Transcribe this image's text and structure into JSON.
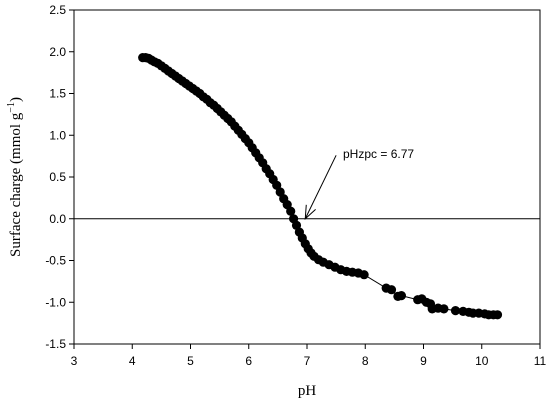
{
  "chart_data": {
    "type": "scatter",
    "xlabel": "pH",
    "ylabel_main": "Surface charge (mmol g",
    "ylabel_sup": "−1",
    "ylabel_close": ")",
    "xlim": [
      3,
      11
    ],
    "ylim": [
      -1.5,
      2.5
    ],
    "x_ticks": [
      3,
      4,
      5,
      6,
      7,
      8,
      9,
      10,
      11
    ],
    "y_ticks": [
      -1.5,
      -1.0,
      -0.5,
      0.0,
      0.5,
      1.0,
      1.5,
      2.0,
      2.5
    ],
    "x_tick_labels": [
      "3",
      "4",
      "5",
      "6",
      "7",
      "8",
      "9",
      "10",
      "11"
    ],
    "y_tick_labels": [
      "-1.5",
      "-1.0",
      "-0.5",
      "0.0",
      "0.5",
      "1.0",
      "1.5",
      "2.0",
      "2.5"
    ],
    "reference_line_y": 0,
    "grid": false,
    "marker_color": "#000000",
    "annotation": {
      "text": "pHzpc = 6.77",
      "arrow_tip": [
        6.97,
        0.0
      ],
      "arrow_tail": [
        7.5,
        0.76
      ]
    },
    "points": [
      [
        4.18,
        1.93
      ],
      [
        4.23,
        1.93
      ],
      [
        4.28,
        1.92
      ],
      [
        4.33,
        1.9
      ],
      [
        4.38,
        1.88
      ],
      [
        4.44,
        1.86
      ],
      [
        4.5,
        1.83
      ],
      [
        4.56,
        1.8
      ],
      [
        4.62,
        1.77
      ],
      [
        4.68,
        1.74
      ],
      [
        4.74,
        1.71
      ],
      [
        4.8,
        1.68
      ],
      [
        4.86,
        1.65
      ],
      [
        4.92,
        1.62
      ],
      [
        4.98,
        1.59
      ],
      [
        5.04,
        1.56
      ],
      [
        5.1,
        1.53
      ],
      [
        5.16,
        1.5
      ],
      [
        5.22,
        1.46
      ],
      [
        5.28,
        1.43
      ],
      [
        5.34,
        1.39
      ],
      [
        5.4,
        1.36
      ],
      [
        5.46,
        1.32
      ],
      [
        5.52,
        1.28
      ],
      [
        5.58,
        1.24
      ],
      [
        5.64,
        1.2
      ],
      [
        5.7,
        1.16
      ],
      [
        5.76,
        1.11
      ],
      [
        5.82,
        1.06
      ],
      [
        5.88,
        1.01
      ],
      [
        5.94,
        0.96
      ],
      [
        6.0,
        0.91
      ],
      [
        6.06,
        0.85
      ],
      [
        6.12,
        0.79
      ],
      [
        6.18,
        0.73
      ],
      [
        6.24,
        0.67
      ],
      [
        6.3,
        0.6
      ],
      [
        6.36,
        0.54
      ],
      [
        6.42,
        0.47
      ],
      [
        6.48,
        0.4
      ],
      [
        6.54,
        0.32
      ],
      [
        6.6,
        0.24
      ],
      [
        6.66,
        0.17
      ],
      [
        6.72,
        0.09
      ],
      [
        6.77,
        0.0
      ],
      [
        6.82,
        -0.08
      ],
      [
        6.87,
        -0.16
      ],
      [
        6.92,
        -0.23
      ],
      [
        6.97,
        -0.3
      ],
      [
        7.02,
        -0.36
      ],
      [
        7.07,
        -0.41
      ],
      [
        7.12,
        -0.45
      ],
      [
        7.2,
        -0.49
      ],
      [
        7.28,
        -0.52
      ],
      [
        7.38,
        -0.55
      ],
      [
        7.48,
        -0.58
      ],
      [
        7.58,
        -0.61
      ],
      [
        7.68,
        -0.63
      ],
      [
        7.78,
        -0.64
      ],
      [
        7.88,
        -0.65
      ],
      [
        7.98,
        -0.67
      ],
      [
        8.36,
        -0.83
      ],
      [
        8.45,
        -0.85
      ],
      [
        8.56,
        -0.93
      ],
      [
        8.62,
        -0.92
      ],
      [
        8.9,
        -0.97
      ],
      [
        8.97,
        -0.96
      ],
      [
        9.05,
        -1.0
      ],
      [
        9.12,
        -1.02
      ],
      [
        9.15,
        -1.08
      ],
      [
        9.25,
        -1.07
      ],
      [
        9.35,
        -1.08
      ],
      [
        9.55,
        -1.1
      ],
      [
        9.68,
        -1.11
      ],
      [
        9.78,
        -1.12
      ],
      [
        9.85,
        -1.13
      ],
      [
        9.95,
        -1.13
      ],
      [
        10.05,
        -1.14
      ],
      [
        10.12,
        -1.15
      ],
      [
        10.2,
        -1.15
      ],
      [
        10.27,
        -1.15
      ]
    ]
  }
}
